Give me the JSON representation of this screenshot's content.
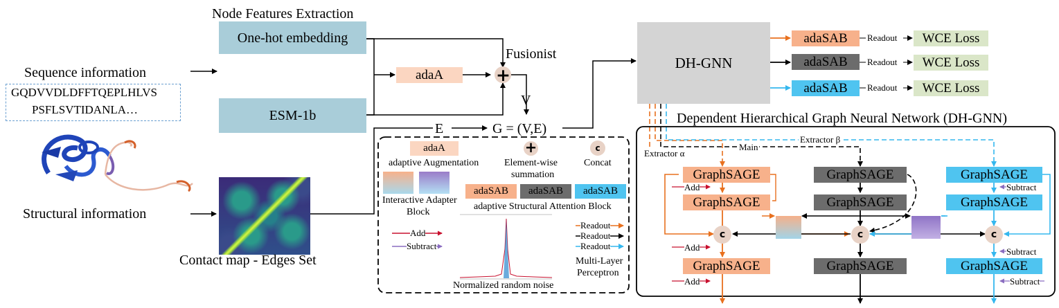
{
  "colors": {
    "blue_box": "#a9cdd9",
    "orange": "#f7b18b",
    "orange_line": "#e8701e",
    "gray_dark": "#6c6c6c",
    "gray_light": "#d4d4d4",
    "cyan": "#4fc4f0",
    "cyan_line": "#34b7ee",
    "green": "#dae6c8",
    "purple": "#8a6dc0",
    "red": "#c8102e"
  },
  "left": {
    "sequence_label": "Sequence information",
    "sequence_line1": "GQDVVDLDFFTQEPLHLVS",
    "sequence_line2": "PSFLSVTIDANLA…",
    "structure_label": "Structural information",
    "contact_label": "Contact map - Edges Set"
  },
  "node_features": {
    "title": "Node Features Extraction",
    "onehot": "One-hot embedding",
    "esm": "ESM-1b",
    "adaA": "adaA",
    "fusion_label": "Fusionist",
    "v_label": "V",
    "e_label": "E",
    "graph_label": "G = (V,E)"
  },
  "dhgnn": {
    "box_label": "DH-GNN",
    "outputs": [
      {
        "block": "adaSAB",
        "readout": "Readout",
        "loss": "WCE Loss"
      },
      {
        "block": "adaSAB",
        "readout": "Readout",
        "loss": "WCE Loss"
      },
      {
        "block": "adaSAB",
        "readout": "Readout",
        "loss": "WCE Loss"
      }
    ],
    "title": "Dependent Hierarchical Graph Neural Network (DH-GNN)",
    "extractor_alpha": "Extractor α",
    "extractor_beta": "Extractor β",
    "main": "Main",
    "layer_label": "GraphSAGE",
    "concat_symbol": "c",
    "add": "Add",
    "subtract": "Subtract"
  },
  "legend": {
    "adaA": "adaA",
    "adaA_desc": "adaptive Augmentation",
    "sum_desc_line1": "Element-wise",
    "sum_desc_line2": "summation",
    "concat_symbol": "c",
    "concat_desc": "Concat",
    "adapter_line1": "Interactive Adapter",
    "adapter_line2": "Block",
    "sab1": "adaSAB",
    "sab2": "adaSAB",
    "sab3": "adaSAB",
    "sab_desc": "adaptive Structural Attention Block",
    "add": "Add",
    "subtract": "Subtract",
    "readout": "Readout",
    "mlp_line1": "Multi-Layer",
    "mlp_line2": "Perceptron",
    "noise": "Normalized random noise"
  }
}
